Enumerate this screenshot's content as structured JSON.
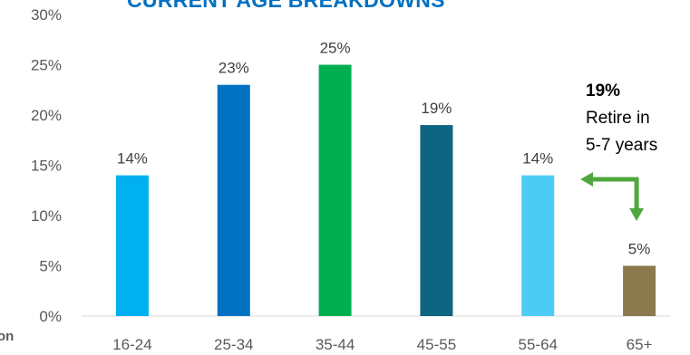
{
  "chart_data": {
    "type": "bar",
    "title": "CURRENT AGE BREAKDOWNS",
    "categories": [
      "16-24",
      "25-34",
      "35-44",
      "45-55",
      "55-64",
      "65+"
    ],
    "values": [
      14,
      23,
      25,
      19,
      14,
      5
    ],
    "value_labels": [
      "14%",
      "23%",
      "25%",
      "19%",
      "14%",
      "5%"
    ],
    "bar_colors": [
      "#00b0f0",
      "#0070c0",
      "#00b050",
      "#0d6582",
      "#4ccbf5",
      "#8b7a4e"
    ],
    "ylim": [
      0,
      30
    ],
    "yticks": [
      0,
      5,
      10,
      15,
      20,
      25,
      30
    ],
    "ytick_labels": [
      "0%",
      "5%",
      "10%",
      "15%",
      "20%",
      "25%",
      "30%"
    ],
    "grid": false,
    "legend": "none"
  },
  "annotation": {
    "percent": "19%",
    "lines": [
      "Retire in",
      "5-7 years"
    ],
    "arrow_color": "#4fa83d"
  },
  "side_label": "on"
}
